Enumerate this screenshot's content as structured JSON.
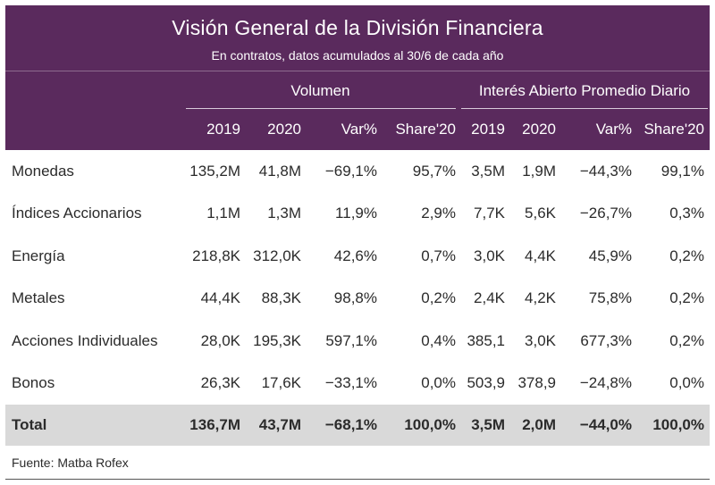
{
  "title": "Visión General de la División Financiera",
  "subtitle": "En contratos, datos acumulados al 30/6 de cada año",
  "groups": {
    "volume": "Volumen",
    "open_interest": "Interés Abierto Promedio Diario"
  },
  "columns": [
    "2019",
    "2020",
    "Var%",
    "Share'20",
    "2019",
    "2020",
    "Var%",
    "Share'20"
  ],
  "rows": [
    {
      "label": "Monedas",
      "cells": [
        "135,2M",
        "41,8M",
        "−69,1%",
        "95,7%",
        "3,5M",
        "1,9M",
        "−44,3%",
        "99,1%"
      ]
    },
    {
      "label": "Índices Accionarios",
      "cells": [
        "1,1M",
        "1,3M",
        "11,9%",
        "2,9%",
        "7,7K",
        "5,6K",
        "−26,7%",
        "0,3%"
      ]
    },
    {
      "label": "Energía",
      "cells": [
        "218,8K",
        "312,0K",
        "42,6%",
        "0,7%",
        "3,0K",
        "4,4K",
        "45,9%",
        "0,2%"
      ]
    },
    {
      "label": "Metales",
      "cells": [
        "44,4K",
        "88,3K",
        "98,8%",
        "0,2%",
        "2,4K",
        "4,2K",
        "75,8%",
        "0,2%"
      ]
    },
    {
      "label": "Acciones Individuales",
      "cells": [
        "28,0K",
        "195,3K",
        "597,1%",
        "0,4%",
        "385,1",
        "3,0K",
        "677,3%",
        "0,2%"
      ]
    },
    {
      "label": "Bonos",
      "cells": [
        "26,3K",
        "17,6K",
        "−33,1%",
        "0,0%",
        "503,9",
        "378,9",
        "−24,8%",
        "0,0%"
      ]
    }
  ],
  "total": {
    "label": "Total",
    "cells": [
      "136,7M",
      "43,7M",
      "−68,1%",
      "100,0%",
      "3,5M",
      "2,0M",
      "−44,0%",
      "100,0%"
    ]
  },
  "source": "Fuente: Matba Rofex",
  "colors": {
    "header_bg": "#5a2a5d",
    "total_bg": "#d9d9d9"
  }
}
